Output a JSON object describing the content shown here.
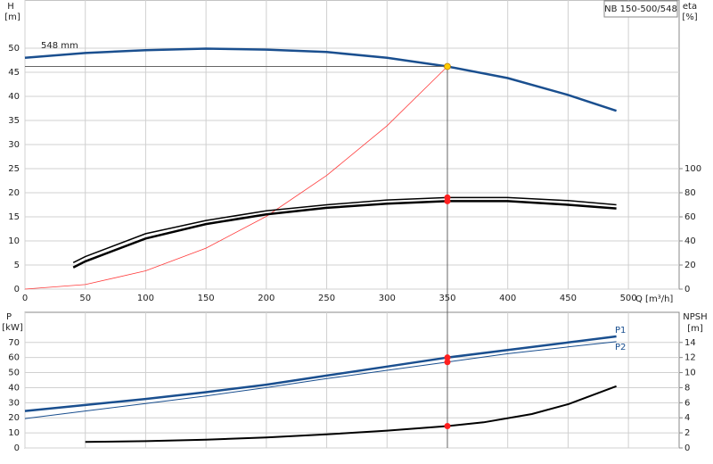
{
  "chart_data": [
    {
      "type": "line",
      "y_label": "H",
      "y_unit": "[m]",
      "y2_label": "eta",
      "y2_unit": "[%]",
      "x_label": "Q [m³/h]",
      "title": "NB 150-500/548",
      "annotation": "548 mm",
      "xlim": [
        0,
        542
      ],
      "xticks": [
        0,
        50,
        100,
        150,
        200,
        250,
        300,
        350,
        400,
        450,
        500
      ],
      "ylim": [
        0,
        60
      ],
      "yticks": [
        0,
        5,
        10,
        15,
        20,
        25,
        30,
        35,
        40,
        45,
        50
      ],
      "y2lim": [
        0,
        240
      ],
      "y2ticks": [
        0,
        20,
        40,
        60,
        80,
        100
      ],
      "grid": true,
      "series": [
        {
          "color": "#1a4f8f",
          "width": 2.5,
          "x": [
            0,
            50,
            100,
            150,
            200,
            250,
            300,
            350,
            400,
            450,
            490
          ],
          "values": [
            48,
            49,
            49.6,
            49.9,
            49.7,
            49.2,
            48,
            46.2,
            43.8,
            40.3,
            37
          ]
        },
        {
          "color": "#ff3b3b",
          "width": 0.8,
          "x": [
            0,
            50,
            100,
            150,
            200,
            250,
            300,
            350
          ],
          "values": [
            0,
            0.94,
            3.8,
            8.5,
            15.1,
            23.6,
            33.9,
            46.2
          ]
        },
        {
          "color": "#000000",
          "width": 1.5,
          "axis": "y2",
          "x": [
            40,
            50,
            100,
            150,
            200,
            250,
            300,
            350,
            400,
            450,
            490
          ],
          "values": [
            22,
            27,
            46,
            57,
            65,
            70,
            74,
            76,
            76,
            73.5,
            70
          ]
        },
        {
          "color": "#000000",
          "width": 2.5,
          "axis": "y2",
          "x": [
            40,
            50,
            100,
            150,
            200,
            250,
            300,
            350,
            400,
            450,
            490
          ],
          "values": [
            18,
            23,
            42,
            54,
            62,
            67.5,
            71,
            73,
            73,
            70,
            67
          ]
        },
        {
          "type": "points",
          "color": "#ffcc00",
          "x": [
            350
          ],
          "values": [
            46.2
          ],
          "guide": true
        },
        {
          "type": "points",
          "color": "#ff2020",
          "axis": "y2",
          "x": [
            350,
            350
          ],
          "values": [
            76,
            73
          ]
        }
      ]
    },
    {
      "type": "line",
      "y_label": "P",
      "y_unit": "[kW]",
      "y2_label": "NPSH",
      "y2_unit": "[m]",
      "xlim": [
        0,
        542
      ],
      "xticks": [
        0,
        50,
        100,
        150,
        200,
        250,
        300,
        350,
        400,
        450,
        500
      ],
      "xtick_labels": false,
      "ylim": [
        0,
        90
      ],
      "yticks": [
        0,
        10,
        20,
        30,
        40,
        50,
        60,
        70
      ],
      "y2lim": [
        0,
        18
      ],
      "y2ticks": [
        0,
        2,
        4,
        6,
        8,
        10,
        12,
        14
      ],
      "grid": true,
      "series": [
        {
          "name": "P1",
          "color": "#1a4f8f",
          "width": 2.5,
          "x": [
            0,
            50,
            100,
            150,
            200,
            250,
            300,
            350,
            400,
            450,
            490
          ],
          "values": [
            24.5,
            28.5,
            32.5,
            37,
            42,
            48,
            54,
            60,
            65,
            70,
            74
          ]
        },
        {
          "name": "P2",
          "color": "#1a4f8f",
          "width": 1,
          "x": [
            0,
            50,
            100,
            150,
            200,
            250,
            300,
            350,
            400,
            450,
            490
          ],
          "values": [
            19.5,
            24.5,
            29.5,
            34.5,
            40,
            46,
            51.5,
            57,
            62.5,
            67,
            70.5
          ]
        },
        {
          "color": "#000000",
          "width": 2,
          "axis": "y2",
          "x": [
            50,
            100,
            150,
            200,
            250,
            300,
            350,
            380,
            420,
            450,
            490
          ],
          "values": [
            0.8,
            0.9,
            1.1,
            1.4,
            1.8,
            2.3,
            2.9,
            3.4,
            4.5,
            5.8,
            8.2
          ]
        },
        {
          "type": "points",
          "color": "#ff2020",
          "x": [
            350,
            350
          ],
          "values": [
            60,
            57
          ]
        },
        {
          "type": "points",
          "color": "#ff2020",
          "axis": "y2",
          "x": [
            350
          ],
          "values": [
            2.9
          ]
        }
      ]
    }
  ]
}
